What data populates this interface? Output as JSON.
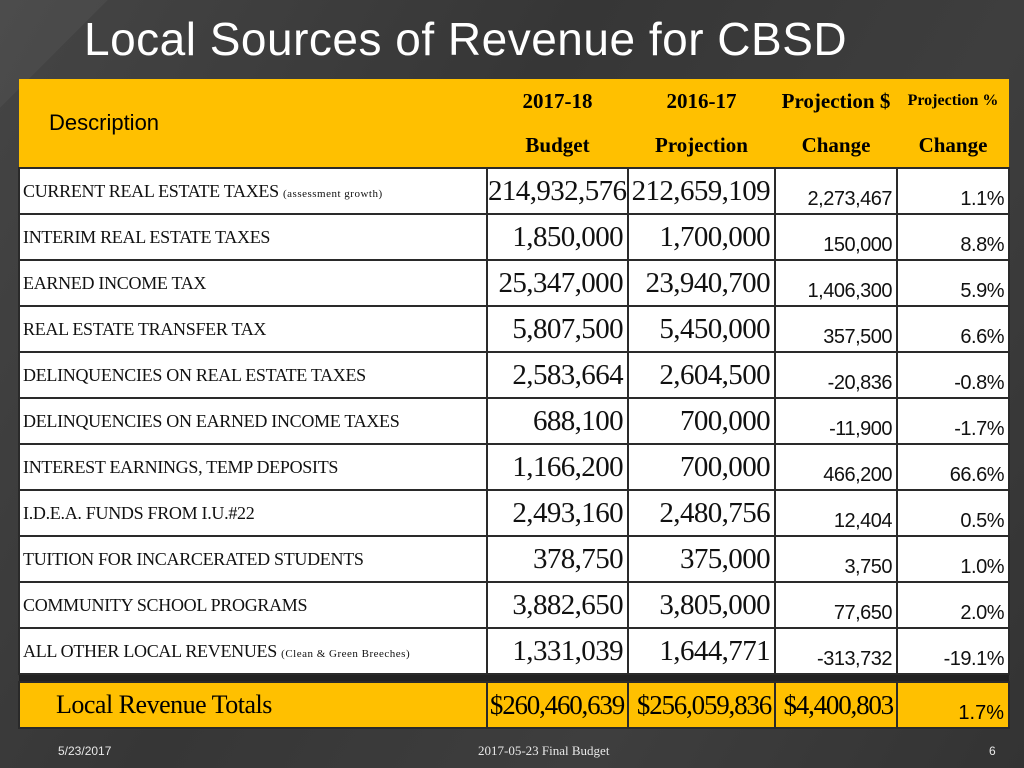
{
  "title": "Local Sources of Revenue for CBSD",
  "header": {
    "description": "Description",
    "col1_top": "2017-18",
    "col1_bottom": "Budget",
    "col2_top": "2016-17",
    "col2_bottom": "Projection",
    "col3_top": "Projection $",
    "col3_bottom": "Change",
    "col4_top": "Projection %",
    "col4_bottom": "Change"
  },
  "rows": [
    {
      "label": "CURRENT REAL ESTATE TAXES",
      "note": "(assessment growth)",
      "budget": "214,932,576",
      "projection": "212,659,109",
      "change": "2,273,467",
      "pct": "1.1%"
    },
    {
      "label": "INTERIM REAL ESTATE TAXES",
      "note": "",
      "budget": "1,850,000",
      "projection": "1,700,000",
      "change": "150,000",
      "pct": "8.8%"
    },
    {
      "label": "EARNED INCOME TAX",
      "note": "",
      "budget": "25,347,000",
      "projection": "23,940,700",
      "change": "1,406,300",
      "pct": "5.9%"
    },
    {
      "label": "REAL ESTATE TRANSFER TAX",
      "note": "",
      "budget": "5,807,500",
      "projection": "5,450,000",
      "change": "357,500",
      "pct": "6.6%"
    },
    {
      "label": "DELINQUENCIES ON REAL ESTATE TAXES",
      "note": "",
      "budget": "2,583,664",
      "projection": "2,604,500",
      "change": "-20,836",
      "pct": "-0.8%"
    },
    {
      "label": "DELINQUENCIES ON EARNED INCOME TAXES",
      "note": "",
      "budget": "688,100",
      "projection": "700,000",
      "change": "-11,900",
      "pct": "-1.7%"
    },
    {
      "label": "INTEREST EARNINGS, TEMP DEPOSITS",
      "note": "",
      "budget": "1,166,200",
      "projection": "700,000",
      "change": "466,200",
      "pct": "66.6%"
    },
    {
      "label": "I.D.E.A. FUNDS FROM  I.U.#22",
      "note": "",
      "budget": "2,493,160",
      "projection": "2,480,756",
      "change": "12,404",
      "pct": "0.5%"
    },
    {
      "label": "TUITION FOR INCARCERATED STUDENTS",
      "note": "",
      "budget": "378,750",
      "projection": "375,000",
      "change": "3,750",
      "pct": "1.0%"
    },
    {
      "label": "COMMUNITY SCHOOL PROGRAMS",
      "note": "",
      "budget": "3,882,650",
      "projection": "3,805,000",
      "change": "77,650",
      "pct": "2.0%"
    },
    {
      "label": "ALL OTHER LOCAL REVENUES",
      "note": "(Clean & Green Breeches)",
      "budget": "1,331,039",
      "projection": "1,644,771",
      "change": "-313,732",
      "pct": "-19.1%"
    }
  ],
  "totals": {
    "label": "Local Revenue Totals",
    "budget": "$260,460,639",
    "projection": "$256,059,836",
    "change": "$4,400,803",
    "pct": "1.7%"
  },
  "footer": {
    "date": "5/23/2017",
    "center": "2017-05-23 Final Budget",
    "page": "6"
  },
  "colors": {
    "header_bg": "#ffc000",
    "slide_bg": "#3b3b3b"
  }
}
